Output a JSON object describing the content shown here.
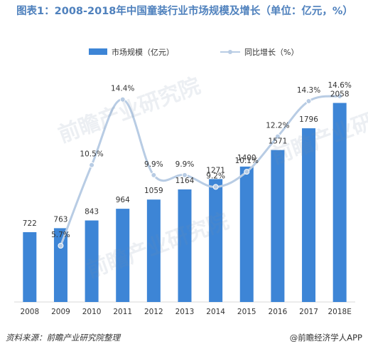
{
  "title": "图表1：2008-2018年中国童装行业市场规模及增长（单位：亿元，%）",
  "footer": {
    "source": "资料来源：前瞻产业研究院整理",
    "brand": "@前瞻经济学人APP"
  },
  "watermark": "前瞻产业研究院",
  "colors": {
    "bar": "#3d85d6",
    "line": "#b8cce4",
    "title": "#4f81bd"
  },
  "chart_data": {
    "type": "bar",
    "categories": [
      "2008",
      "2009",
      "2010",
      "2011",
      "2012",
      "2013",
      "2014",
      "2015",
      "2016",
      "2017",
      "2018E"
    ],
    "series": [
      {
        "name": "市场规模（亿元）",
        "kind": "bar",
        "values": [
          722,
          763,
          843,
          964,
          1059,
          1164,
          1271,
          1400,
          1571,
          1796,
          2058
        ],
        "labels": [
          "722",
          "763",
          "843",
          "964",
          "1059",
          "1164",
          "1271",
          "1400",
          "1571",
          "1796",
          "2058"
        ]
      },
      {
        "name": "同比增长（%）",
        "kind": "line",
        "values": [
          null,
          5.7,
          10.5,
          14.4,
          9.9,
          9.9,
          9.2,
          10.1,
          12.2,
          14.3,
          14.6
        ],
        "labels": [
          "",
          "5.7%",
          "10.5%",
          "14.4%",
          "9.9%",
          "9.9%",
          "9.2%",
          "10.1%",
          "12.2%",
          "14.3%",
          "14.6%"
        ]
      }
    ],
    "legend_position": "top-center",
    "grid": false
  }
}
